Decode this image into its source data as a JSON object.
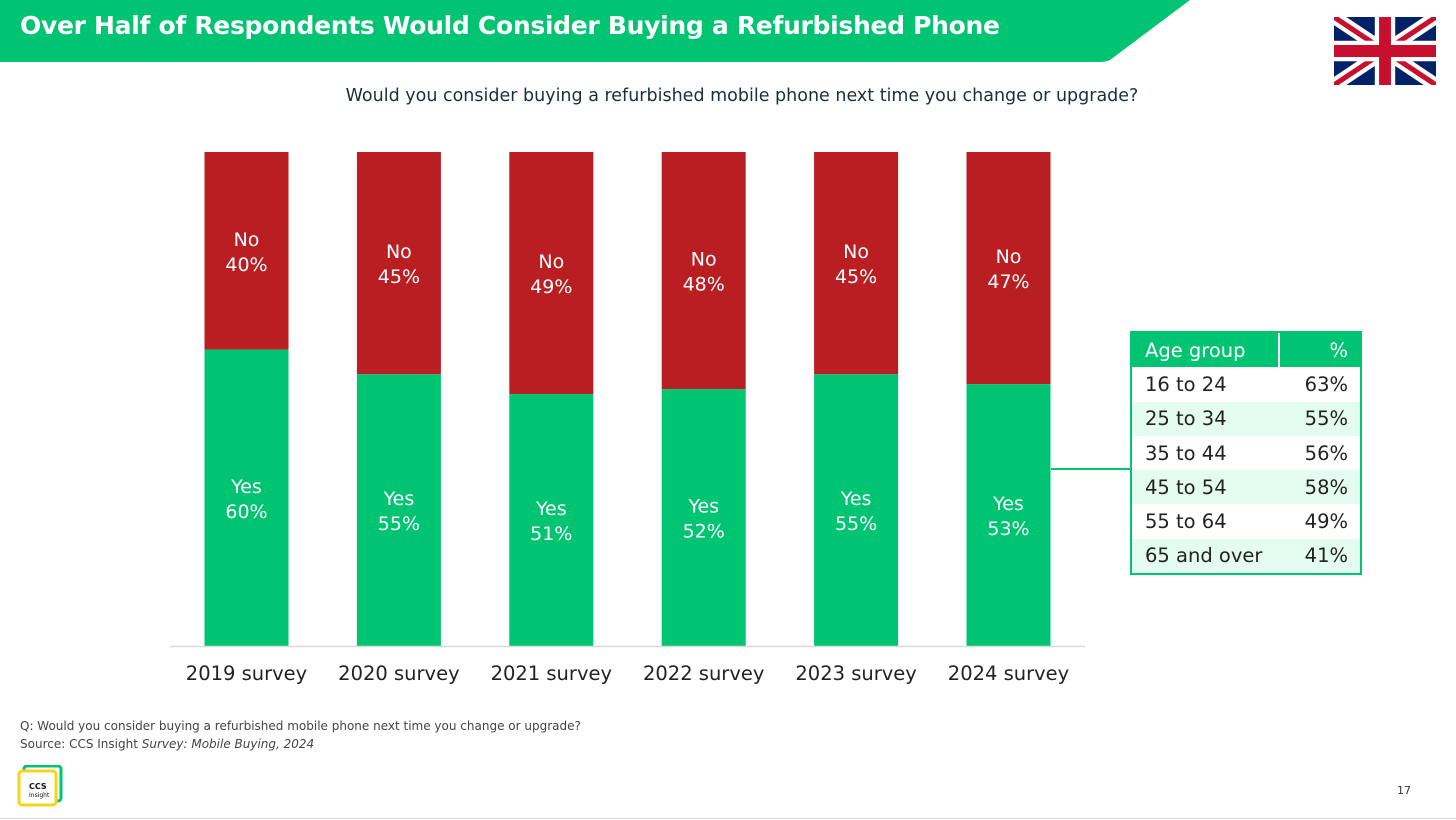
{
  "slide": {
    "title": "Over Half of Respondents Would Consider Buying a Refurbished Phone",
    "question": "Would you consider buying a refurbished mobile phone next time you change or upgrade?",
    "footnote_q": "Q: Would you consider buying a refurbished mobile phone next time you change or upgrade?",
    "footnote_source_prefix": "Source: CCS Insight ",
    "footnote_source_italic": "Survey: Mobile Buying, 2024",
    "logo_text_1": "CCS",
    "logo_text_2": "Insight",
    "page_number": "17",
    "flag_icon": "union-jack-flag-icon"
  },
  "colors": {
    "green": "#00c472",
    "red": "#b91f22",
    "table_alt_row": "#e3fbf0",
    "logo_yellow": "#f5d51c"
  },
  "chart_data": {
    "type": "bar",
    "stacked": true,
    "percent_stacked": true,
    "categories": [
      "2019 survey",
      "2020 survey",
      "2021 survey",
      "2022 survey",
      "2023 survey",
      "2024 survey"
    ],
    "series": [
      {
        "name": "Yes",
        "values": [
          60,
          55,
          51,
          52,
          55,
          53
        ],
        "color": "#00c472"
      },
      {
        "name": "No",
        "values": [
          40,
          45,
          49,
          48,
          45,
          47
        ],
        "color": "#b91f22"
      }
    ],
    "ylim": [
      0,
      100
    ],
    "grid": false,
    "legend": "none"
  },
  "age_table": {
    "header": [
      "Age group",
      "%"
    ],
    "rows": [
      [
        "16 to 24",
        "63%"
      ],
      [
        "25 to 34",
        "55%"
      ],
      [
        "35 to 44",
        "56%"
      ],
      [
        "45 to 54",
        "58%"
      ],
      [
        "55 to 64",
        "49%"
      ],
      [
        "65 and over",
        "41%"
      ]
    ]
  }
}
